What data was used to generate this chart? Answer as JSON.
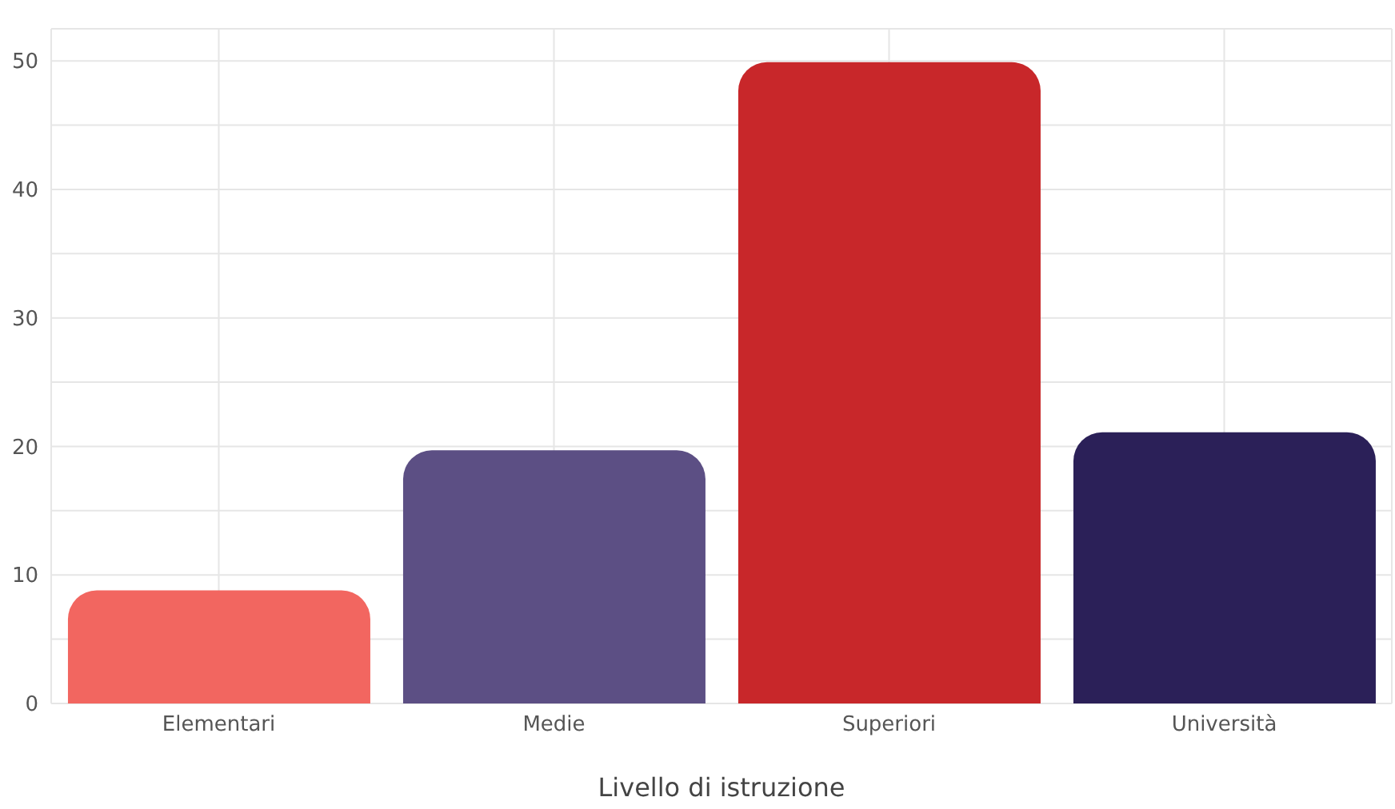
{
  "chart_data": {
    "type": "bar",
    "xlabel": "Livello di istruzione",
    "categories": [
      "Elementari",
      "Medie",
      "Superiori",
      "Università"
    ],
    "values": [
      8.8,
      19.7,
      49.9,
      21.1
    ],
    "colors": [
      "#f26660",
      "#5c4f84",
      "#c8272a",
      "#2b2058"
    ],
    "ylim": [
      0,
      52.5
    ],
    "yticks": [
      0,
      {
        "value": 5,
        "label": null
      },
      10,
      {
        "value": 15,
        "label": null
      },
      20,
      {
        "value": 25,
        "label": null
      },
      30,
      {
        "value": 35,
        "label": null
      },
      40,
      {
        "value": 45,
        "label": null
      },
      50
    ],
    "grid": true
  }
}
